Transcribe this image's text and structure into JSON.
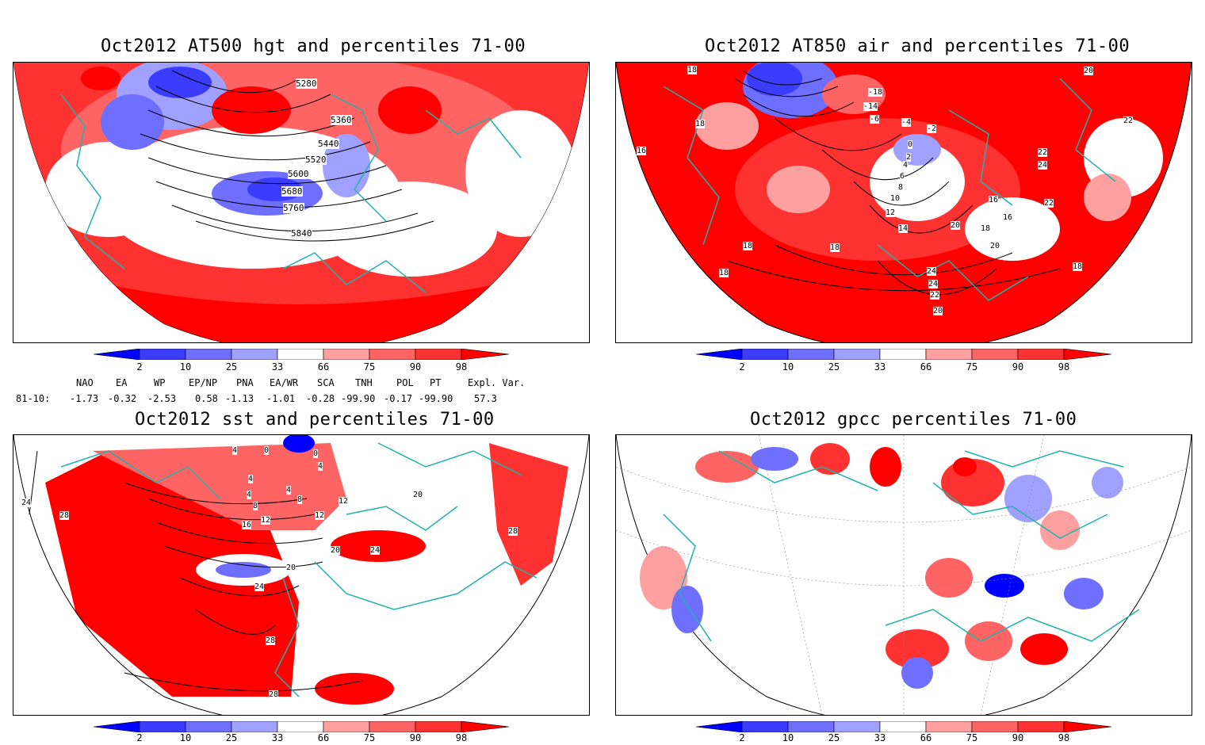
{
  "panels": [
    {
      "title": "Oct2012 AT500 hgt and percentiles 71-00",
      "contour_labels": [
        "5280",
        "5360",
        "5440",
        "5520",
        "5600",
        "5680",
        "5760",
        "5840"
      ]
    },
    {
      "title": "Oct2012 AT850 air and percentiles 71-00",
      "contour_labels": [
        "18",
        "18",
        "18",
        "18",
        "16",
        "18",
        "20",
        "22",
        "22",
        "24",
        "-18",
        "-14",
        "-6",
        "-4",
        "-2",
        "0",
        "2",
        "4",
        "6",
        "8",
        "10",
        "12",
        "14",
        "16",
        "16",
        "18",
        "20",
        "22",
        "24",
        "24",
        "22",
        "20",
        "18",
        "20"
      ]
    },
    {
      "title": "Oct2012 sst and percentiles 71-00",
      "contour_labels": [
        "4",
        "0",
        "0",
        "4",
        "4",
        "4",
        "4",
        "8",
        "8",
        "12",
        "12",
        "12",
        "16",
        "20",
        "20",
        "24",
        "20",
        "24",
        "28",
        "28",
        "28",
        "24",
        "28"
      ]
    },
    {
      "title": "Oct2012 gpcc percentiles 71-00",
      "contour_labels": []
    }
  ],
  "colorbar": {
    "ticks": [
      "2",
      "10",
      "25",
      "33",
      "66",
      "75",
      "90",
      "98"
    ],
    "colors": [
      "#0000ff",
      "#3c3cff",
      "#6e6eff",
      "#a0a0ff",
      "#ffffff",
      "#ffa0a0",
      "#ff6464",
      "#ff3232",
      "#ff0000"
    ]
  },
  "indices": {
    "headers": [
      "NAO",
      "EA",
      "WP",
      "EP/NP",
      "PNA",
      "EA/WR",
      "SCA",
      "TNH",
      "POL",
      "PT",
      "Expl. Var."
    ],
    "row_label": "81-10:",
    "values": [
      "-1.73",
      "-0.32",
      "-2.53",
      "0.58",
      "-1.13",
      "-1.01",
      "-0.28",
      "-99.90",
      "-0.17",
      "-99.90",
      "57.3"
    ]
  },
  "colors": {
    "coast": "#20b2aa",
    "contour": "#000000",
    "grid": "#888888"
  }
}
